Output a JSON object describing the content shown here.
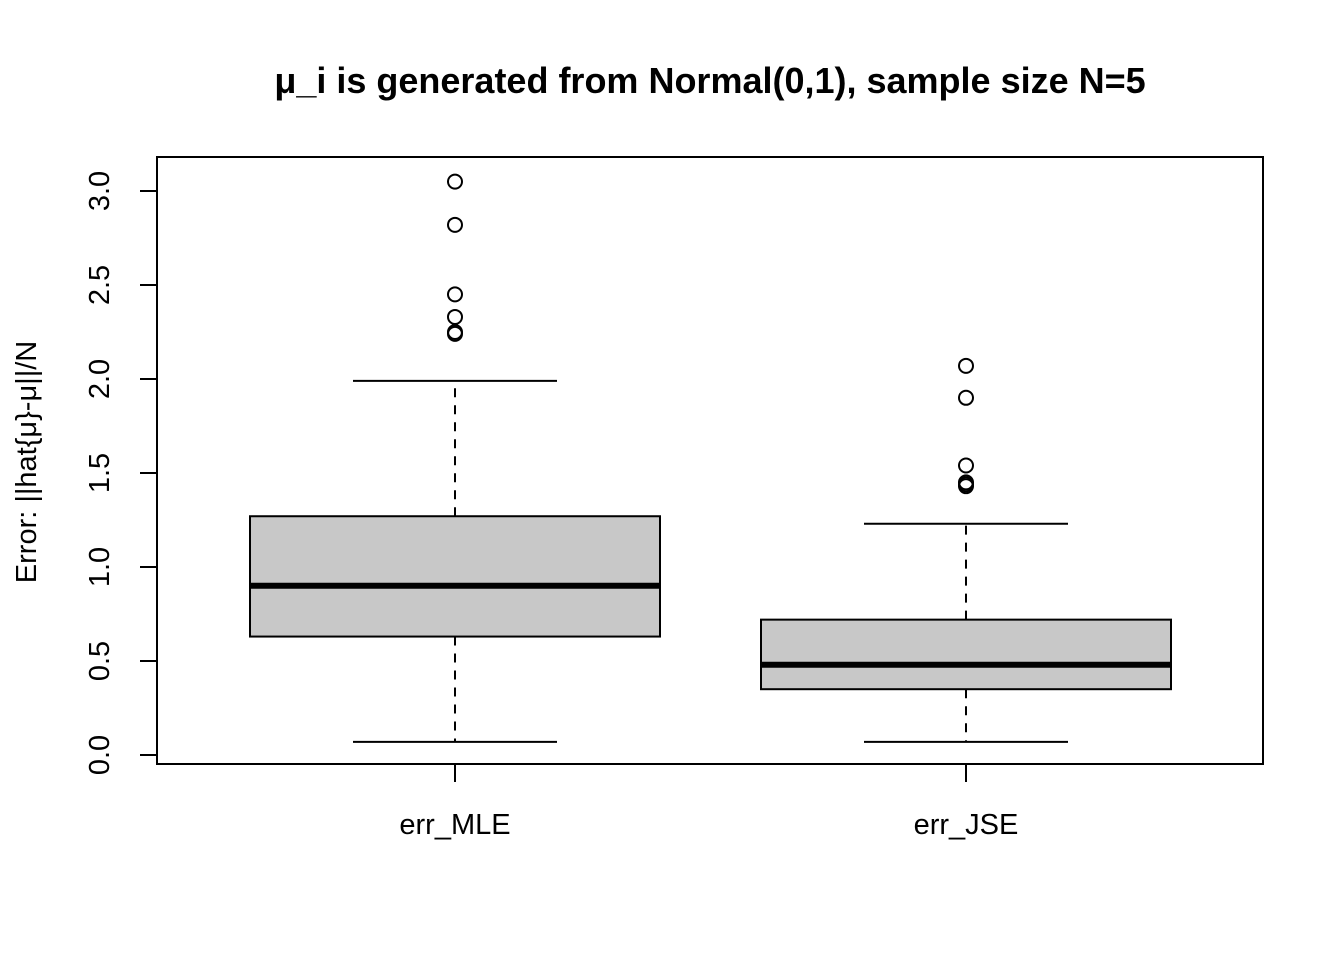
{
  "chart_data": {
    "type": "box",
    "title": "μ_i is generated from Normal(0,1), sample size N=5",
    "xlabel": "",
    "ylabel": "Error: ||hat{μ}-μ||/N",
    "ylim": [
      -0.05,
      3.18
    ],
    "yticks": [
      "0.0",
      "0.5",
      "1.0",
      "1.5",
      "2.0",
      "2.5",
      "3.0"
    ],
    "grid": false,
    "categories": [
      "err_MLE",
      "err_JSE"
    ],
    "series": [
      {
        "category": "err_MLE",
        "whisker_low": 0.07,
        "q1": 0.63,
        "median": 0.9,
        "q3": 1.27,
        "whisker_high": 1.99,
        "outliers": [
          3.05,
          2.82,
          2.45,
          2.33,
          2.25,
          2.24
        ]
      },
      {
        "category": "err_JSE",
        "whisker_low": 0.07,
        "q1": 0.35,
        "median": 0.48,
        "q3": 0.72,
        "whisker_high": 1.23,
        "outliers": [
          2.07,
          1.9,
          1.54,
          1.45,
          1.44,
          1.43
        ]
      }
    ],
    "colors": {
      "box_fill": "#c8c8c8",
      "stroke": "#000000"
    }
  }
}
